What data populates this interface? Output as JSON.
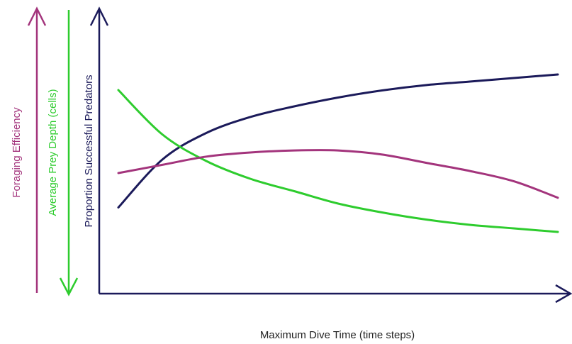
{
  "chart_data": {
    "type": "line",
    "title": "",
    "xlabel": "Maximum Dive Time (time steps)",
    "x": [
      0,
      1,
      2,
      3,
      4,
      5,
      6,
      7,
      8,
      9,
      10
    ],
    "axes": {
      "proportion": {
        "label": "Proportion Successful Predators",
        "direction": "up",
        "color": "#1b1a5a"
      },
      "depth": {
        "label": "Average Prey Depth (cells)",
        "direction": "down",
        "color": "#2ecc2e"
      },
      "efficiency": {
        "label": "Foraging Efficiency",
        "direction": "up",
        "color": "#a3347c"
      }
    },
    "series": [
      {
        "axis": "proportion",
        "color": "#1b1a5a",
        "values": [
          0.15,
          0.42,
          0.57,
          0.66,
          0.72,
          0.77,
          0.81,
          0.84,
          0.86,
          0.88,
          0.9
        ]
      },
      {
        "axis": "depth",
        "color": "#2ecc2e",
        "values": [
          0.1,
          0.35,
          0.5,
          0.6,
          0.67,
          0.74,
          0.79,
          0.83,
          0.86,
          0.88,
          0.9
        ]
      },
      {
        "axis": "efficiency",
        "color": "#a3347c",
        "values": [
          0.4,
          0.44,
          0.48,
          0.5,
          0.51,
          0.51,
          0.49,
          0.45,
          0.41,
          0.36,
          0.28
        ]
      }
    ],
    "ylim": [
      0,
      1
    ],
    "grid": false,
    "legend": "none"
  }
}
